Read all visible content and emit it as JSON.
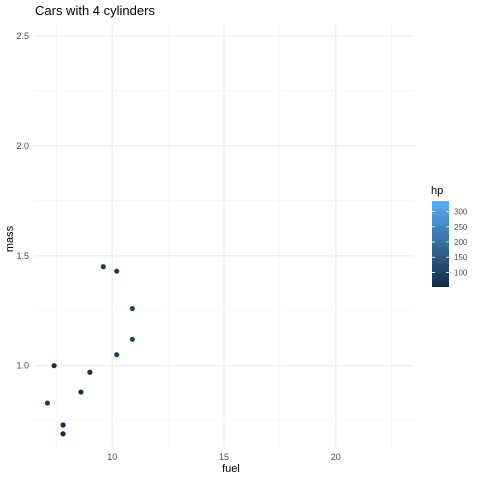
{
  "chart_data": {
    "type": "scatter",
    "title": "Cars with 4 cylinders",
    "xlabel": "fuel",
    "ylabel": "mass",
    "xlim": [
      6.5,
      23.5
    ],
    "ylim": [
      0.63,
      2.55
    ],
    "xticks": [
      10,
      15,
      20
    ],
    "yticks": [
      1.0,
      1.5,
      2.0,
      2.5
    ],
    "grid": true,
    "color_scale": {
      "title": "hp",
      "range": [
        52,
        335
      ],
      "ticks": [
        100,
        150,
        200,
        250,
        300
      ],
      "low_color": "#132B43",
      "high_color": "#56B1F7"
    },
    "points": [
      {
        "x": 7.1,
        "y": 0.83,
        "hp": 93
      },
      {
        "x": 7.4,
        "y": 1.0,
        "hp": 62
      },
      {
        "x": 7.8,
        "y": 0.69,
        "hp": 52
      },
      {
        "x": 7.8,
        "y": 0.73,
        "hp": 65
      },
      {
        "x": 8.6,
        "y": 0.88,
        "hp": 66
      },
      {
        "x": 9.0,
        "y": 0.97,
        "hp": 66
      },
      {
        "x": 9.6,
        "y": 1.45,
        "hp": 95
      },
      {
        "x": 10.2,
        "y": 1.43,
        "hp": 97
      },
      {
        "x": 10.2,
        "y": 1.05,
        "hp": 91
      },
      {
        "x": 10.9,
        "y": 1.26,
        "hp": 109
      },
      {
        "x": 10.9,
        "y": 1.12,
        "hp": 113
      }
    ]
  }
}
